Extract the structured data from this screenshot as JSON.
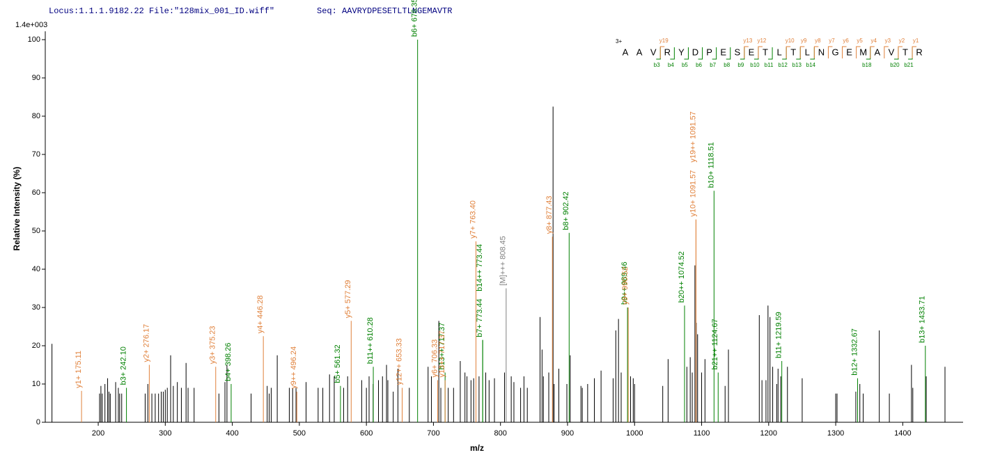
{
  "chart_data": {
    "type": "spectrum",
    "title": "Locus:1.1.1.9182.22 File:\"128mix_001_ID.wiff\"",
    "subtitle": "Seq: AAVRYDPESETLTLNGEMAVTR",
    "scale_label": "1.4e+003",
    "ylabel": "Relative   Intensity (%)",
    "xlabel": "m/z",
    "xlim": [
      121,
      1490
    ],
    "ylim": [
      0,
      100
    ],
    "xticks": [
      200,
      300,
      400,
      500,
      600,
      700,
      800,
      900,
      1000,
      1100,
      1200,
      1300,
      1400
    ],
    "yticks": [
      0,
      10,
      20,
      30,
      40,
      50,
      60,
      70,
      80,
      90,
      100
    ],
    "sequence": {
      "charge": "3+",
      "residues": [
        "A",
        "A",
        "V",
        "R",
        "Y",
        "D",
        "P",
        "E",
        "S",
        "E",
        "T",
        "L",
        "T",
        "L",
        "N",
        "G",
        "E",
        "M",
        "A",
        "V",
        "T",
        "R"
      ],
      "b_ions": [
        "b3",
        "b4",
        "b5",
        "b6",
        "b7",
        "b8",
        "b9",
        "b10",
        "b11",
        "b12",
        "b13",
        "b14",
        "b18",
        "b20",
        "b21"
      ],
      "y_ions": [
        "y19",
        "y13",
        "y12",
        "y10",
        "y9",
        "y8",
        "y7",
        "y6",
        "y5",
        "y4",
        "y3",
        "y2",
        "y1"
      ],
      "b_color": "#008000",
      "y_color": "#e0803a"
    },
    "series": [
      {
        "color": "#000000",
        "x": [
          131,
          202,
          204,
          206,
          210,
          214,
          216,
          218,
          226,
          230,
          232,
          235,
          270,
          274,
          280,
          285,
          290,
          294,
          297,
          300,
          303,
          308,
          312,
          318,
          324,
          331,
          334,
          343,
          380,
          389,
          392,
          428,
          452,
          455,
          458,
          467,
          485,
          490,
          495,
          510,
          528,
          535,
          545,
          552,
          566,
          572,
          593,
          600,
          604,
          610,
          618,
          624,
          630,
          632,
          640,
          647,
          664,
          692,
          697,
          708,
          711,
          722,
          730,
          740,
          747,
          750,
          756,
          760,
          768,
          778,
          783,
          791,
          806,
          816,
          820,
          830,
          835,
          840,
          859,
          862,
          864,
          872,
          878.4,
          880,
          887,
          899,
          904,
          920,
          922,
          930,
          940,
          950,
          968,
          972,
          976,
          980,
          994,
          998,
          1000,
          1042,
          1050,
          1078,
          1083,
          1086,
          1090,
          1092,
          1094,
          1100,
          1105,
          1135,
          1140,
          1186,
          1190,
          1196,
          1199,
          1202,
          1206,
          1212,
          1214,
          1218,
          1228,
          1250,
          1300,
          1302,
          1330,
          1336,
          1341,
          1365,
          1380,
          1413,
          1415,
          1435,
          1463
        ],
        "values": [
          20.5,
          7.5,
          9.5,
          7.5,
          10,
          11.5,
          8,
          7.5,
          10.5,
          9,
          7.5,
          7.5,
          7.5,
          10,
          7.5,
          7.5,
          7.5,
          8,
          8,
          8.5,
          9,
          17.5,
          9.5,
          10.5,
          9,
          15.5,
          9,
          9,
          7.5,
          10.5,
          15,
          7.5,
          9.5,
          7.5,
          9,
          17.5,
          9,
          9,
          9,
          10.5,
          9,
          9,
          12.5,
          12,
          9,
          12,
          11,
          9,
          12,
          10,
          11,
          12,
          15,
          11,
          8,
          14,
          9,
          14.5,
          12,
          26.5,
          9,
          9,
          9,
          16,
          13,
          12,
          11,
          11.5,
          12,
          13,
          11,
          11.5,
          13,
          12,
          10.5,
          9,
          12,
          9,
          27.5,
          19,
          12,
          13,
          82.5,
          10,
          14,
          10,
          17.5,
          9.5,
          9,
          10,
          11.5,
          13.5,
          11.5,
          24,
          27,
          13,
          12,
          11.5,
          10,
          9.5,
          16.5,
          14.5,
          17,
          13,
          41,
          26,
          23,
          13,
          16.5,
          9.5,
          19,
          28,
          11,
          11,
          30.5,
          27.5,
          14.5,
          10,
          14,
          12,
          14.5,
          11.5,
          7.5,
          7.5,
          8,
          10,
          7.5,
          24,
          7.5,
          15,
          9,
          12,
          14.5
        ],
        "labels": [
          null,
          null,
          null,
          null,
          null,
          null,
          null,
          null,
          null,
          null,
          null,
          null,
          null,
          null,
          null,
          null,
          null,
          null,
          null,
          null,
          null,
          null,
          null,
          null,
          null,
          null,
          null,
          null,
          null,
          null,
          null,
          null,
          null,
          null,
          null,
          null,
          null,
          null,
          null,
          null,
          null,
          null,
          null,
          null,
          null,
          null,
          null,
          null,
          null,
          null,
          null,
          null,
          null,
          null,
          null,
          null,
          null,
          null,
          null,
          null,
          null,
          null,
          null,
          null,
          null,
          null,
          null,
          null,
          null,
          null,
          null,
          null,
          null,
          null,
          null,
          null,
          null,
          null,
          null,
          null,
          null,
          null,
          null,
          null,
          null,
          null,
          null,
          null,
          null,
          null,
          null,
          null,
          null,
          null,
          null,
          null,
          null,
          null,
          null,
          null,
          null,
          null,
          null,
          null,
          null,
          null,
          null,
          null,
          null,
          null,
          null,
          null,
          null,
          null,
          null,
          null,
          null,
          null,
          null,
          null,
          null,
          null,
          null,
          null,
          null,
          null,
          null,
          null,
          null,
          null,
          null,
          null,
          null,
          null
        ]
      },
      {
        "color": "#008000",
        "x": [
          242.1,
          398.26,
          561.32,
          610.28,
          676.35,
          717.37,
          773.44,
          773.44,
          902.42,
          989.46,
          1074.52,
          1118.51,
          1124.67,
          1219.59,
          1332.67,
          1433.71
        ],
        "values": [
          9,
          10,
          9.5,
          14.5,
          100,
          13,
          21.5,
          21.5,
          49.5,
          30,
          30.5,
          60.5,
          13,
          16,
          11.5,
          20
        ],
        "labels": [
          "b3+ 242.10",
          "b4+ 398.26",
          "b5+ 561.32",
          "b11++ 610.28",
          "b6+ 676.35",
          "b13++ 717.37",
          "b7+ 773.44",
          "b14++ 773.44",
          "b8+ 902.42",
          "b9++ 989.46",
          "b20++ 1074.52",
          "b10+ 1118.51",
          "b21++ 1124.67",
          "b11+ 1219.59",
          "b12+ 1332.67",
          "b13+ 1433.71"
        ]
      },
      {
        "color": "#e0803a",
        "x": [
          175.11,
          276.17,
          375.23,
          446.28,
          496.24,
          577.29,
          653.33,
          706.33,
          717.37,
          763.4,
          877.43,
          990.52,
          1091.57,
          1091.57
        ],
        "values": [
          8.2,
          15,
          14.5,
          22.5,
          8,
          26.5,
          9,
          11,
          11,
          47.3,
          48.5,
          30,
          53,
          53
        ],
        "labels": [
          "y1+ 175.11",
          "y2+ 276.17",
          "y3+ 375.23",
          "y4+ 446.28",
          "y9++ 496.24",
          "y5+ 577.29",
          "y12++ 653.33",
          "y6+ 706.33",
          "y13++ 717.37",
          "y7+ 763.40",
          "y8+ 877.43",
          "y9+ 990.52",
          "y10+ 1091.57",
          "y19++ 1091.57"
        ]
      },
      {
        "color": "#808080",
        "x": [
          808.45
        ],
        "values": [
          35
        ],
        "labels": [
          "[M]+++ 808.45"
        ]
      }
    ]
  }
}
